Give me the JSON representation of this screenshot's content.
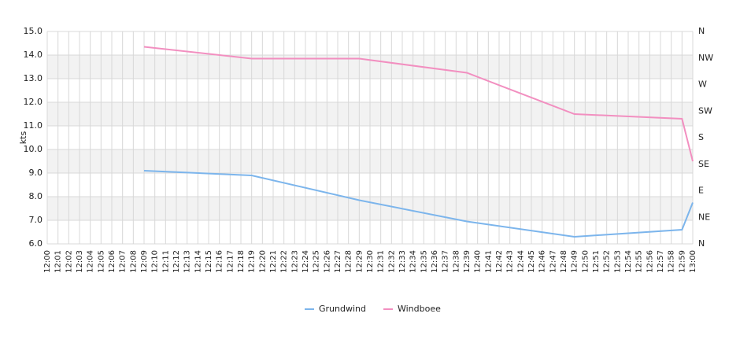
{
  "chart_data": {
    "type": "line",
    "y_label": "kts",
    "categories": [
      "12:00",
      "12:01",
      "12:02",
      "12:03",
      "12:04",
      "12:05",
      "12:06",
      "12:07",
      "12:08",
      "12:09",
      "12:10",
      "12:11",
      "12:12",
      "12:13",
      "12:14",
      "12:15",
      "12:16",
      "12:17",
      "12:18",
      "12:19",
      "12:20",
      "12:21",
      "12:22",
      "12:23",
      "12:24",
      "12:25",
      "12:26",
      "12:27",
      "12:28",
      "12:29",
      "12:30",
      "12:31",
      "12:32",
      "12:33",
      "12:34",
      "12:35",
      "12:36",
      "12:37",
      "12:38",
      "12:39",
      "12:40",
      "12:41",
      "12:42",
      "12:43",
      "12:44",
      "12:45",
      "12:46",
      "12:47",
      "12:48",
      "12:49",
      "12:50",
      "12:51",
      "12:52",
      "12:53",
      "12:54",
      "12:55",
      "12:56",
      "12:57",
      "12:58",
      "12:59",
      "13:00"
    ],
    "series": [
      {
        "name": "Grundwind",
        "color": "#7cb5ec",
        "x": [
          "12:09",
          "12:19",
          "12:29",
          "12:39",
          "12:49",
          "12:59",
          "13:00"
        ],
        "values": [
          9.1,
          8.9,
          7.85,
          6.95,
          6.3,
          6.6,
          7.75
        ]
      },
      {
        "name": "Windboee",
        "color": "#f28fc0",
        "x": [
          "12:09",
          "12:19",
          "12:29",
          "12:39",
          "12:49",
          "12:59",
          "13:00"
        ],
        "values": [
          14.35,
          13.85,
          13.85,
          13.25,
          11.5,
          11.3,
          9.5
        ]
      }
    ],
    "ylim": [
      6,
      15
    ],
    "yticks": [
      {
        "value": 6,
        "label": "6.0"
      },
      {
        "value": 7,
        "label": "7.0"
      },
      {
        "value": 8,
        "label": "8.0"
      },
      {
        "value": 9,
        "label": "9.0"
      },
      {
        "value": 10,
        "label": "10.0"
      },
      {
        "value": 11,
        "label": "11.0"
      },
      {
        "value": 12,
        "label": "12.0"
      },
      {
        "value": 13,
        "label": "13.0"
      },
      {
        "value": 14,
        "label": "14.0"
      },
      {
        "value": 15,
        "label": "15.0"
      }
    ],
    "y2lim": [
      0,
      360
    ],
    "y2ticks": [
      {
        "value": 0,
        "label": "N"
      },
      {
        "value": 45,
        "label": "NE"
      },
      {
        "value": 90,
        "label": "E"
      },
      {
        "value": 135,
        "label": "SE"
      },
      {
        "value": 180,
        "label": "S"
      },
      {
        "value": 225,
        "label": "SW"
      },
      {
        "value": 270,
        "label": "W"
      },
      {
        "value": 315,
        "label": "NW"
      },
      {
        "value": 360,
        "label": "N"
      }
    ],
    "grid": true
  }
}
